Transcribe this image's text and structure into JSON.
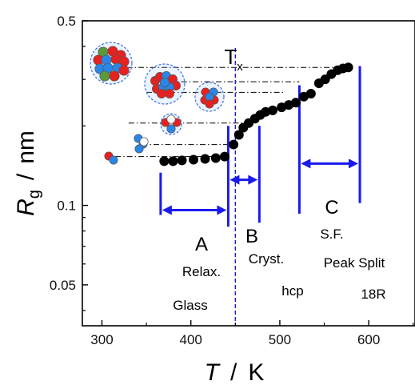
{
  "chart_data": {
    "type": "scatter",
    "xlabel": {
      "symbol": "T",
      "separator": "/",
      "unit": "K"
    },
    "ylabel": {
      "symbol": "R",
      "subscript": "g",
      "separator": "/",
      "unit": "nm"
    },
    "xlim": [
      278,
      652
    ],
    "ylim": [
      0.035,
      0.5
    ],
    "yscale": "log",
    "xticks": [
      300,
      400,
      500,
      600
    ],
    "yticks": [
      {
        "value": 0.05,
        "label": "0.05"
      },
      {
        "value": 0.1,
        "label": "0.1"
      },
      {
        "value": 0.5,
        "label": "0.5"
      }
    ],
    "series": [
      {
        "color": "#000000",
        "points": [
          [
            370,
            0.147
          ],
          [
            380,
            0.147
          ],
          [
            390,
            0.148
          ],
          [
            403,
            0.149
          ],
          [
            416,
            0.15
          ],
          [
            428,
            0.151
          ],
          [
            438,
            0.153
          ],
          [
            448,
            0.17
          ],
          [
            454,
            0.185
          ],
          [
            459,
            0.197
          ],
          [
            465,
            0.205
          ],
          [
            472,
            0.213
          ],
          [
            478,
            0.22
          ],
          [
            484,
            0.226
          ],
          [
            492,
            0.229
          ],
          [
            502,
            0.235
          ],
          [
            510,
            0.24
          ],
          [
            518,
            0.245
          ],
          [
            527,
            0.258
          ],
          [
            535,
            0.265
          ],
          [
            544,
            0.29
          ],
          [
            551,
            0.3
          ],
          [
            558,
            0.314
          ],
          [
            565,
            0.325
          ],
          [
            571,
            0.33
          ],
          [
            577,
            0.333
          ]
        ]
      }
    ],
    "transition": {
      "label": "T",
      "subscript": "x",
      "x": 450
    },
    "region_markers": [
      {
        "x": 366,
        "ymin": 0.092,
        "ymax": 0.133
      },
      {
        "x": 442,
        "ymin": 0.083,
        "ymax": 0.2
      },
      {
        "x": 477,
        "ymin": 0.086,
        "ymax": 0.2
      },
      {
        "x": 522,
        "ymin": 0.093,
        "ymax": 0.285
      },
      {
        "x": 590,
        "ymin": 0.102,
        "ymax": 0.337
      }
    ],
    "region_arrows": [
      {
        "x1": 366,
        "x2": 442,
        "y": 0.096
      },
      {
        "x1": 442,
        "x2": 477,
        "y": 0.125
      },
      {
        "x1": 522,
        "x2": 590,
        "y": 0.144
      }
    ],
    "regions": [
      {
        "letter": "A",
        "lines": [
          "Relax.",
          "Glass"
        ]
      },
      {
        "letter": "B",
        "lines": [
          "Cryst.",
          "hcp"
        ]
      },
      {
        "letter": "C",
        "lines": [
          "S.F.",
          "Peak Split",
          "18R"
        ]
      }
    ],
    "guide_lines": [
      {
        "x1": 328,
        "x2": 575,
        "y": 0.333
      },
      {
        "x1": 363,
        "x2": 522,
        "y": 0.294
      },
      {
        "x1": 350,
        "x2": 505,
        "y": 0.268
      },
      {
        "x1": 330,
        "x2": 465,
        "y": 0.205
      },
      {
        "x1": 345,
        "x2": 450,
        "y": 0.17
      },
      {
        "x1": 315,
        "x2": 440,
        "y": 0.153
      }
    ],
    "cluster_icons": [
      {
        "atoms": 2,
        "circled": false
      },
      {
        "atoms": 3,
        "circled": false
      },
      {
        "atoms": 4,
        "circled": true
      },
      {
        "atoms": 5,
        "circled": true
      },
      {
        "atoms": 10,
        "circled": true
      },
      {
        "atoms": 13,
        "circled": true
      }
    ],
    "colors": {
      "points": "#000000",
      "markers": "#1a1aee",
      "guides": "#000000",
      "atom_red": "#e82020",
      "atom_blue": "#2a86e6",
      "atom_green": "#5a9a3a",
      "halo": "#3a6ee8"
    }
  }
}
